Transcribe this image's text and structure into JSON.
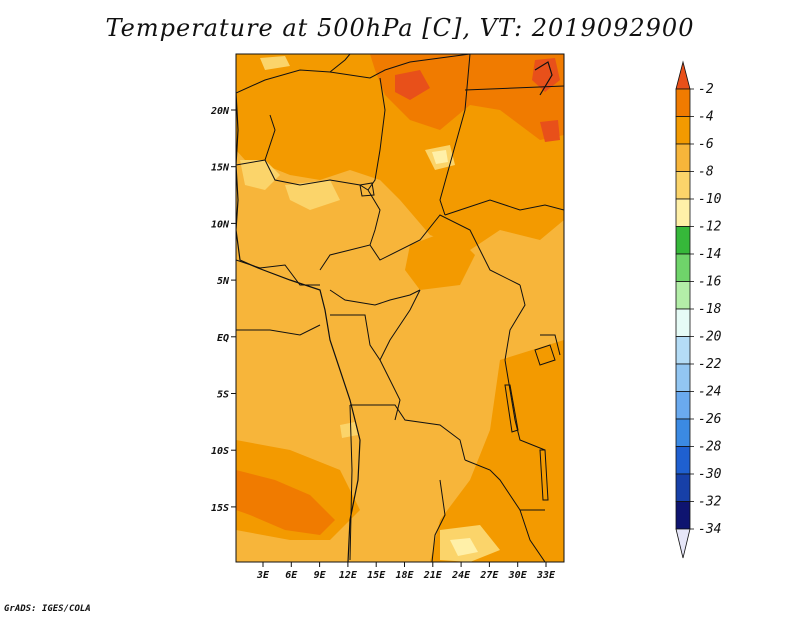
{
  "title": "Temperature at 500hPa [C], VT: 2019092900",
  "footer": "GrADS: IGES/COLA",
  "map": {
    "lon_ticks": [
      "3E",
      "6E",
      "9E",
      "12E",
      "15E",
      "18E",
      "21E",
      "24E",
      "27E",
      "30E",
      "33E"
    ],
    "lat_ticks": [
      "20N",
      "15N",
      "10N",
      "5N",
      "EQ",
      "5S",
      "10S",
      "15S"
    ]
  },
  "colorbar": {
    "labels": [
      "-2",
      "-4",
      "-6",
      "-8",
      "-10",
      "-12",
      "-14",
      "-16",
      "-18",
      "-20",
      "-22",
      "-24",
      "-26",
      "-28",
      "-30",
      "-32",
      "-34"
    ],
    "colors": [
      "#e8501a",
      "#f07b00",
      "#f39a00",
      "#f7b53a",
      "#fbd46a",
      "#fff0a8",
      "#36b83a",
      "#6fd46a",
      "#b3eea8",
      "#e6fbf6",
      "#b4dcf6",
      "#92c6f2",
      "#6aaaef",
      "#3b8ae3",
      "#1f60d0",
      "#1740a8",
      "#0e1470",
      "#e6e6f8"
    ]
  },
  "colors": {
    "base": "#f7b53a",
    "warm": "#f39a00",
    "hot": "#f07b00",
    "hottest": "#e8501a",
    "cool": "#fbd46a",
    "coolest": "#fff0a8"
  }
}
